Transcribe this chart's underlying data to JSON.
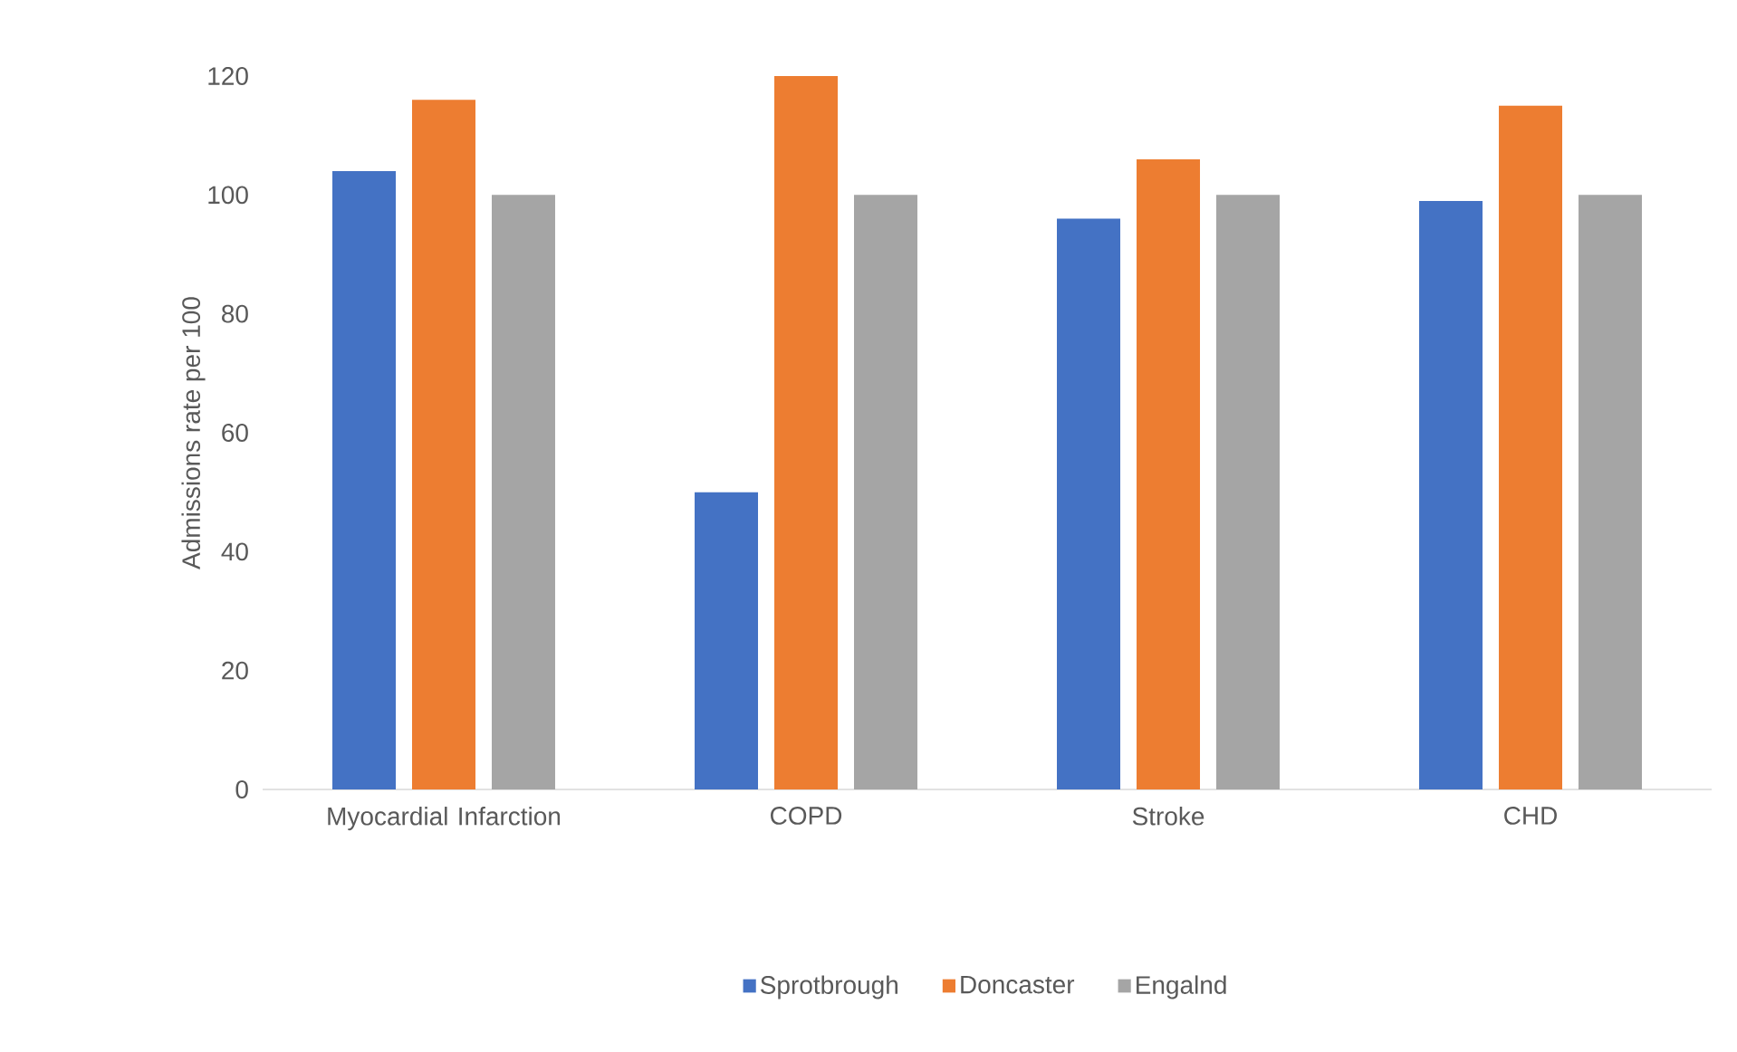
{
  "chart_data": {
    "type": "bar",
    "ylabel": "Admissions rate per 100",
    "categories": [
      "Myocardial Infarction",
      "COPD",
      "Stroke",
      "CHD"
    ],
    "series": [
      {
        "name": "Sprotbrough",
        "color": "#4472c4",
        "values": [
          104,
          50,
          96,
          99
        ]
      },
      {
        "name": "Doncaster",
        "color": "#ed7d31",
        "values": [
          116,
          120,
          106,
          115
        ]
      },
      {
        "name": "Engalnd",
        "color": "#a5a5a5",
        "values": [
          100,
          100,
          100,
          100
        ]
      }
    ],
    "ylim": [
      0,
      120
    ],
    "yticks": [
      0,
      20,
      40,
      60,
      80,
      100,
      120
    ],
    "legend": "bottom"
  }
}
